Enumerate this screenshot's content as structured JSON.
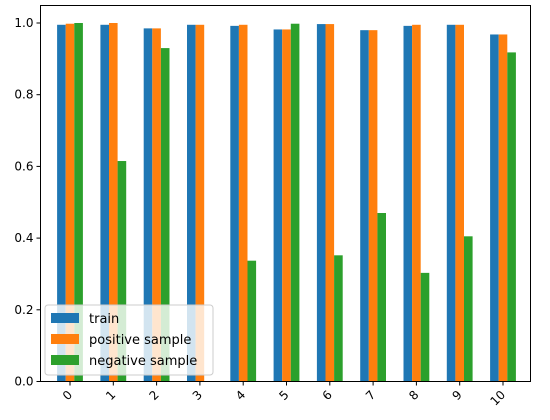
{
  "chart_data": {
    "type": "bar",
    "title": "",
    "xlabel": "",
    "ylabel": "",
    "categories": [
      "0",
      "1",
      "2",
      "3",
      "4",
      "5",
      "6",
      "7",
      "8",
      "9",
      "10"
    ],
    "series": [
      {
        "name": "train",
        "color": "#1f77b4",
        "values": [
          0.995,
          0.995,
          0.985,
          0.995,
          0.992,
          0.982,
          0.997,
          0.98,
          0.992,
          0.995,
          0.968
        ]
      },
      {
        "name": "positive sample",
        "color": "#ff7f0e",
        "values": [
          0.998,
          1.0,
          0.985,
          0.995,
          0.995,
          0.982,
          0.997,
          0.98,
          0.995,
          0.995,
          0.968
        ]
      },
      {
        "name": "negative sample",
        "color": "#2ca02c",
        "values": [
          1.0,
          0.615,
          0.93,
          0.0,
          0.337,
          0.998,
          0.352,
          0.47,
          0.303,
          0.405,
          0.918
        ]
      }
    ],
    "ylim": [
      0,
      1.0
    ],
    "yticks": [
      "0.0",
      "0.2",
      "0.4",
      "0.6",
      "0.8",
      "1.0"
    ],
    "legend": {
      "placement": "lower-left",
      "entries": [
        "train",
        "positive sample",
        "negative sample"
      ]
    },
    "grid": false,
    "xtick_rotation": "45 degrees"
  }
}
